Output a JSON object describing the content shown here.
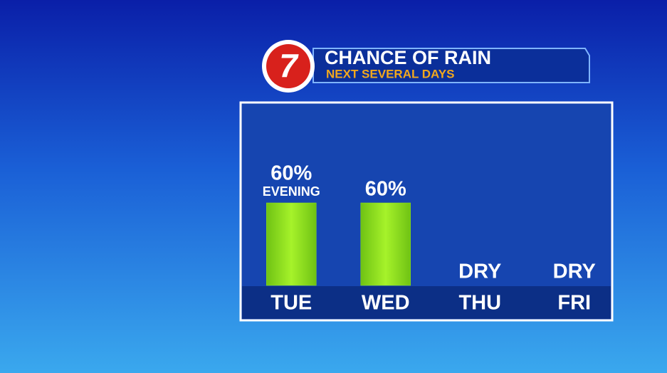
{
  "chart_data": {
    "type": "bar",
    "logo": "7",
    "title": "CHANCE OF RAIN",
    "subtitle": "NEXT SEVERAL DAYS",
    "categories": [
      "TUE",
      "WED",
      "THU",
      "FRI"
    ],
    "values": [
      60,
      60,
      0,
      0
    ],
    "value_labels": [
      "60%",
      "60%",
      "DRY",
      "DRY"
    ],
    "value_notes": [
      "EVENING",
      null,
      null,
      null
    ],
    "color": "#8fe21c"
  }
}
